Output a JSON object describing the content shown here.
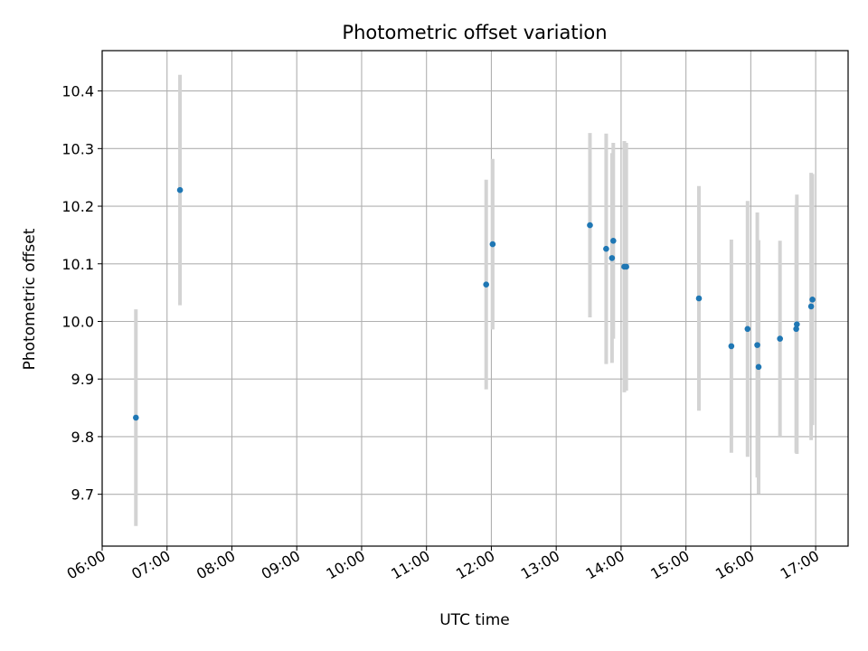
{
  "chart_data": {
    "type": "scatter",
    "title": "Photometric offset variation",
    "xlabel": "UTC time",
    "ylabel": "Photometric offset",
    "x_unit": "hours (UTC)",
    "xlim": [
      6.0,
      17.5
    ],
    "ylim": [
      9.61,
      10.47
    ],
    "xticks": [
      6,
      7,
      8,
      9,
      10,
      11,
      12,
      13,
      14,
      15,
      16,
      17
    ],
    "xtick_labels": [
      "06:00",
      "07:00",
      "08:00",
      "09:00",
      "10:00",
      "11:00",
      "12:00",
      "13:00",
      "14:00",
      "15:00",
      "16:00",
      "17:00"
    ],
    "yticks": [
      9.7,
      9.8,
      9.9,
      10.0,
      10.1,
      10.2,
      10.3,
      10.4
    ],
    "ytick_labels": [
      "9.7",
      "9.8",
      "9.9",
      "10.0",
      "10.1",
      "10.2",
      "10.3",
      "10.4"
    ],
    "grid": true,
    "legend": "none",
    "point_color": "#1f77b4",
    "errorbar_color": "#d3d3d3",
    "points": [
      {
        "x": 6.52,
        "y": 9.833,
        "err": 0.188
      },
      {
        "x": 7.2,
        "y": 10.228,
        "err": 0.2
      },
      {
        "x": 11.92,
        "y": 10.064,
        "err": 0.182
      },
      {
        "x": 12.02,
        "y": 10.134,
        "err": 0.148
      },
      {
        "x": 13.52,
        "y": 10.167,
        "err": 0.16
      },
      {
        "x": 13.77,
        "y": 10.126,
        "err": 0.2
      },
      {
        "x": 13.86,
        "y": 10.11,
        "err": 0.182
      },
      {
        "x": 13.88,
        "y": 10.14,
        "err": 0.17
      },
      {
        "x": 14.05,
        "y": 10.095,
        "err": 0.218
      },
      {
        "x": 14.08,
        "y": 10.095,
        "err": 0.215
      },
      {
        "x": 15.2,
        "y": 10.04,
        "err": 0.195
      },
      {
        "x": 15.7,
        "y": 9.957,
        "err": 0.185
      },
      {
        "x": 15.95,
        "y": 9.987,
        "err": 0.222
      },
      {
        "x": 16.1,
        "y": 9.959,
        "err": 0.23
      },
      {
        "x": 16.12,
        "y": 9.921,
        "err": 0.22
      },
      {
        "x": 16.45,
        "y": 9.97,
        "err": 0.17
      },
      {
        "x": 16.7,
        "y": 9.987,
        "err": 0.215
      },
      {
        "x": 16.71,
        "y": 9.995,
        "err": 0.225
      },
      {
        "x": 16.93,
        "y": 10.026,
        "err": 0.232
      },
      {
        "x": 16.95,
        "y": 10.038,
        "err": 0.218
      }
    ]
  }
}
